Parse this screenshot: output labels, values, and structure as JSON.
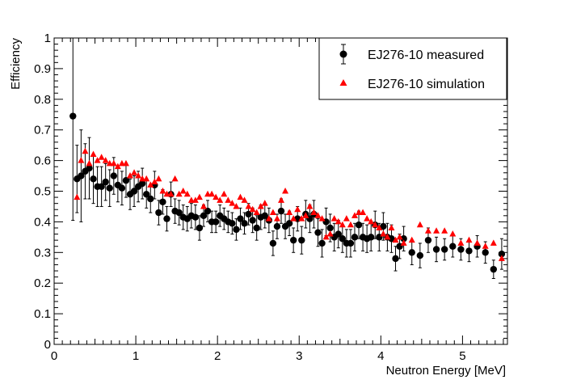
{
  "chart_data": {
    "type": "scatter",
    "title": "",
    "xlabel": "Neutron Energy [MeV]",
    "ylabel": "Efficiency",
    "xlim": [
      0,
      5.55
    ],
    "ylim": [
      0,
      1
    ],
    "x_ticks": [
      0,
      1,
      2,
      3,
      4,
      5
    ],
    "x_tick_labels": [
      "0",
      "1",
      "2",
      "3",
      "4",
      "5"
    ],
    "y_ticks": [
      0,
      0.1,
      0.2,
      0.3,
      0.4,
      0.5,
      0.6,
      0.7,
      0.8,
      0.9,
      1
    ],
    "y_tick_labels": [
      "0",
      "0.1",
      "0.2",
      "0.3",
      "0.4",
      "0.5",
      "0.6",
      "0.7",
      "0.8",
      "0.9",
      "1"
    ],
    "grid": false,
    "legend_position": "top-right",
    "series": [
      {
        "name": "EJ276-10 measured",
        "marker": "circle",
        "color": "#000000",
        "x": [
          0.23,
          0.28,
          0.33,
          0.38,
          0.43,
          0.48,
          0.53,
          0.58,
          0.63,
          0.68,
          0.73,
          0.78,
          0.83,
          0.88,
          0.93,
          0.98,
          1.03,
          1.08,
          1.13,
          1.18,
          1.23,
          1.28,
          1.33,
          1.38,
          1.43,
          1.48,
          1.53,
          1.58,
          1.63,
          1.68,
          1.73,
          1.78,
          1.83,
          1.88,
          1.93,
          1.98,
          2.03,
          2.08,
          2.13,
          2.18,
          2.23,
          2.28,
          2.33,
          2.38,
          2.43,
          2.48,
          2.53,
          2.58,
          2.63,
          2.68,
          2.73,
          2.78,
          2.83,
          2.88,
          2.93,
          2.98,
          3.03,
          3.08,
          3.13,
          3.18,
          3.23,
          3.28,
          3.33,
          3.38,
          3.43,
          3.48,
          3.53,
          3.58,
          3.63,
          3.68,
          3.73,
          3.78,
          3.83,
          3.88,
          3.93,
          3.98,
          4.03,
          4.08,
          4.13,
          4.18,
          4.23,
          4.28,
          4.38,
          4.48,
          4.58,
          4.68,
          4.78,
          4.88,
          4.98,
          5.08,
          5.18,
          5.28,
          5.38,
          5.48
        ],
        "y": [
          0.745,
          0.54,
          0.55,
          0.565,
          0.575,
          0.54,
          0.515,
          0.515,
          0.53,
          0.51,
          0.55,
          0.52,
          0.51,
          0.535,
          0.49,
          0.5,
          0.515,
          0.525,
          0.49,
          0.475,
          0.52,
          0.43,
          0.465,
          0.41,
          0.49,
          0.435,
          0.43,
          0.415,
          0.41,
          0.42,
          0.415,
          0.38,
          0.42,
          0.435,
          0.4,
          0.4,
          0.42,
          0.41,
          0.4,
          0.395,
          0.375,
          0.41,
          0.395,
          0.425,
          0.405,
          0.38,
          0.415,
          0.42,
          0.405,
          0.33,
          0.385,
          0.435,
          0.385,
          0.395,
          0.34,
          0.41,
          0.34,
          0.425,
          0.41,
          0.425,
          0.365,
          0.33,
          0.4,
          0.38,
          0.35,
          0.36,
          0.345,
          0.33,
          0.33,
          0.35,
          0.39,
          0.35,
          0.345,
          0.35,
          0.39,
          0.35,
          0.385,
          0.35,
          0.345,
          0.28,
          0.32,
          0.345,
          0.3,
          0.29,
          0.34,
          0.31,
          0.31,
          0.32,
          0.31,
          0.305,
          0.32,
          0.3,
          0.245,
          0.295
        ],
        "err": [
          0.34,
          0.11,
          0.15,
          0.09,
          0.1,
          0.08,
          0.065,
          0.065,
          0.06,
          0.06,
          0.06,
          0.055,
          0.055,
          0.055,
          0.05,
          0.05,
          0.05,
          0.05,
          0.045,
          0.045,
          0.045,
          0.04,
          0.04,
          0.04,
          0.04,
          0.04,
          0.04,
          0.04,
          0.04,
          0.04,
          0.04,
          0.04,
          0.035,
          0.035,
          0.035,
          0.035,
          0.035,
          0.035,
          0.035,
          0.035,
          0.035,
          0.035,
          0.035,
          0.035,
          0.04,
          0.04,
          0.04,
          0.04,
          0.04,
          0.04,
          0.04,
          0.04,
          0.04,
          0.04,
          0.04,
          0.04,
          0.045,
          0.045,
          0.045,
          0.045,
          0.045,
          0.045,
          0.045,
          0.045,
          0.045,
          0.045,
          0.045,
          0.045,
          0.045,
          0.045,
          0.045,
          0.045,
          0.045,
          0.045,
          0.045,
          0.045,
          0.045,
          0.045,
          0.045,
          0.04,
          0.04,
          0.04,
          0.04,
          0.04,
          0.04,
          0.04,
          0.035,
          0.035,
          0.035,
          0.035,
          0.035,
          0.035,
          0.03,
          0.05
        ]
      },
      {
        "name": "EJ276-10 simulation",
        "marker": "triangle",
        "color": "#ff0000",
        "x": [
          0.28,
          0.33,
          0.38,
          0.43,
          0.48,
          0.53,
          0.58,
          0.63,
          0.68,
          0.73,
          0.78,
          0.83,
          0.88,
          0.93,
          0.98,
          1.03,
          1.08,
          1.13,
          1.18,
          1.23,
          1.28,
          1.33,
          1.38,
          1.43,
          1.48,
          1.53,
          1.58,
          1.63,
          1.68,
          1.73,
          1.78,
          1.83,
          1.88,
          1.93,
          1.98,
          2.03,
          2.08,
          2.13,
          2.18,
          2.23,
          2.28,
          2.33,
          2.38,
          2.43,
          2.48,
          2.53,
          2.58,
          2.63,
          2.68,
          2.73,
          2.78,
          2.83,
          2.88,
          2.93,
          2.98,
          3.03,
          3.08,
          3.13,
          3.18,
          3.23,
          3.28,
          3.33,
          3.38,
          3.43,
          3.48,
          3.53,
          3.58,
          3.63,
          3.68,
          3.73,
          3.78,
          3.83,
          3.88,
          3.93,
          3.98,
          4.03,
          4.08,
          4.13,
          4.18,
          4.23,
          4.28,
          4.38,
          4.48,
          4.58,
          4.68,
          4.78,
          4.88,
          4.98,
          5.08,
          5.18,
          5.28,
          5.38,
          5.48
        ],
        "y": [
          0.48,
          0.6,
          0.63,
          0.59,
          0.62,
          0.6,
          0.61,
          0.6,
          0.59,
          0.59,
          0.58,
          0.59,
          0.59,
          0.55,
          0.56,
          0.55,
          0.54,
          0.54,
          0.52,
          0.53,
          0.54,
          0.5,
          0.49,
          0.49,
          0.54,
          0.49,
          0.5,
          0.49,
          0.47,
          0.47,
          0.48,
          0.45,
          0.49,
          0.49,
          0.48,
          0.47,
          0.49,
          0.47,
          0.46,
          0.45,
          0.48,
          0.47,
          0.45,
          0.44,
          0.43,
          0.45,
          0.46,
          0.41,
          0.43,
          0.41,
          0.47,
          0.5,
          0.43,
          0.41,
          0.44,
          0.41,
          0.42,
          0.45,
          0.43,
          0.42,
          0.41,
          0.35,
          0.36,
          0.41,
          0.4,
          0.39,
          0.41,
          0.39,
          0.42,
          0.43,
          0.43,
          0.41,
          0.4,
          0.39,
          0.38,
          0.36,
          0.35,
          0.38,
          0.34,
          0.35,
          0.33,
          0.34,
          0.39,
          0.37,
          0.37,
          0.37,
          0.36,
          0.33,
          0.34,
          0.33,
          0.32,
          0.33,
          0.28
        ]
      }
    ]
  }
}
